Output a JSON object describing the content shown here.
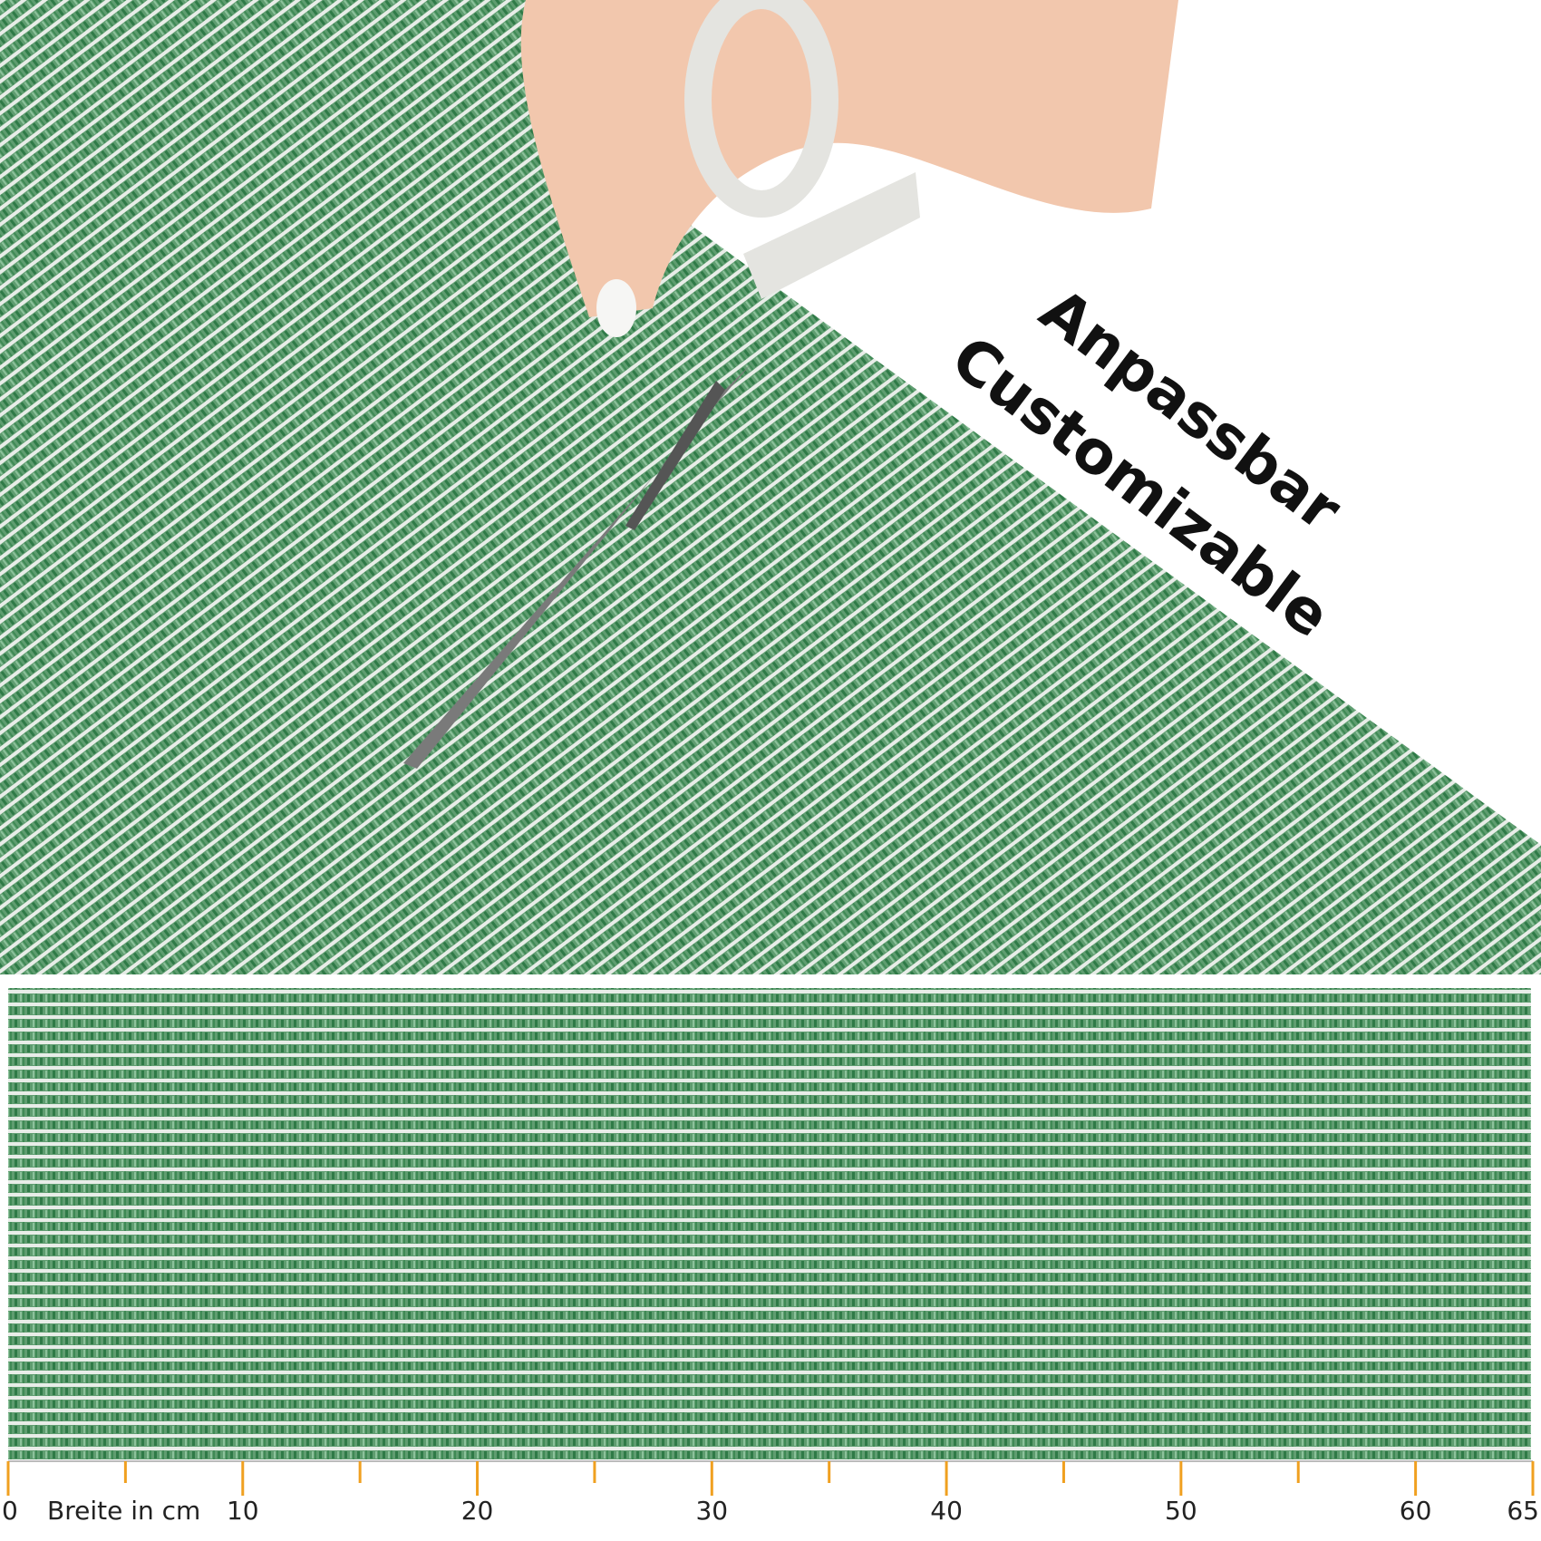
{
  "headline": {
    "line1": "Anpassbar",
    "line2": "Customizable"
  },
  "ruler": {
    "label": "Breite in cm",
    "range": [
      0,
      65
    ],
    "major_ticks": [
      0,
      10,
      20,
      30,
      40,
      50,
      60,
      65
    ],
    "minor_ticks": [
      5,
      15,
      25,
      35,
      45,
      55
    ]
  }
}
